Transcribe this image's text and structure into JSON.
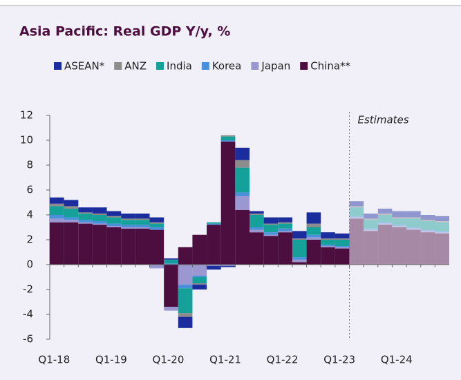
{
  "chart_data": {
    "type": "stacked_bar",
    "title": "Asia Pacific: Real GDP Y/y, %",
    "categories": [
      "Q1-18",
      null,
      null,
      null,
      "Q1-19",
      null,
      null,
      null,
      "Q1-20",
      null,
      null,
      null,
      "Q1-21",
      null,
      null,
      null,
      "Q1-22",
      null,
      null,
      null,
      "Q1-23",
      null,
      null,
      null,
      "Q1-24",
      null,
      null,
      null
    ],
    "series": [
      {
        "name": "ASEAN*",
        "color": "#1b2d9c",
        "values": [
          0.5,
          0.5,
          0.4,
          0.5,
          0.4,
          0.4,
          0.4,
          0.4,
          0.1,
          -0.9,
          -0.4,
          -0.3,
          -0.1,
          1.0,
          0.2,
          0.5,
          0.4,
          0.6,
          0.9,
          0.5,
          0.4,
          0.4,
          0.4,
          0.4,
          0.5,
          0.5,
          0.4,
          0.4
        ]
      },
      {
        "name": "ANZ",
        "color": "#8c8c8c",
        "values": [
          0.2,
          0.2,
          0.1,
          0.1,
          0.1,
          0.1,
          0.1,
          0.1,
          0,
          -0.3,
          -0.1,
          0,
          0.1,
          0.6,
          0.1,
          0.1,
          0.1,
          0.1,
          0.3,
          0.1,
          0.1,
          0.1,
          0.1,
          0.1,
          0.1,
          0.1,
          0.1,
          0.1
        ]
      },
      {
        "name": "India",
        "color": "#16a09a",
        "values": [
          0.7,
          0.7,
          0.5,
          0.5,
          0.5,
          0.4,
          0.4,
          0.3,
          0.3,
          -2.0,
          -0.5,
          0.1,
          0.3,
          2.0,
          1.0,
          0.6,
          0.4,
          1.4,
          0.6,
          0.4,
          0.5,
          0.7,
          0.7,
          0.6,
          0.5,
          0.7,
          0.7,
          0.7
        ]
      },
      {
        "name": "Korea",
        "color": "#4a8fd9",
        "values": [
          0.3,
          0.2,
          0.2,
          0.2,
          0.2,
          0.2,
          0.2,
          0.2,
          0.1,
          -0.3,
          -0.1,
          0.1,
          0.1,
          0.3,
          0.2,
          0.2,
          0.2,
          0.2,
          0.2,
          0.1,
          0.1,
          0.1,
          0.1,
          0.1,
          0.1,
          0.1,
          0.1,
          0.1
        ]
      },
      {
        "name": "Japan",
        "color": "#9b97d1",
        "values": [
          0.3,
          0.2,
          0.1,
          0.1,
          0.1,
          0.1,
          0.1,
          -0.3,
          -0.3,
          -1.6,
          -0.9,
          -0.1,
          -0.1,
          1.1,
          0.2,
          0.1,
          0.1,
          0.2,
          0.2,
          0.1,
          0.1,
          0.1,
          0.1,
          0.1,
          0.1,
          0.1,
          0.1,
          0.1
        ]
      },
      {
        "name": "China**",
        "color": "#4b0e3f",
        "values": [
          3.4,
          3.4,
          3.3,
          3.2,
          3.0,
          2.9,
          2.9,
          2.8,
          -3.4,
          1.4,
          2.4,
          3.2,
          9.9,
          4.4,
          2.6,
          2.3,
          2.6,
          0.2,
          2.0,
          1.4,
          1.3,
          3.7,
          2.7,
          3.2,
          3.0,
          2.8,
          2.6,
          2.5
        ]
      }
    ],
    "estimate_start": 21,
    "annotation": "Estimates",
    "ylim": [
      -6,
      12
    ],
    "yticks": [
      -6,
      -4,
      -2,
      0,
      2,
      4,
      6,
      8,
      10,
      12
    ]
  }
}
